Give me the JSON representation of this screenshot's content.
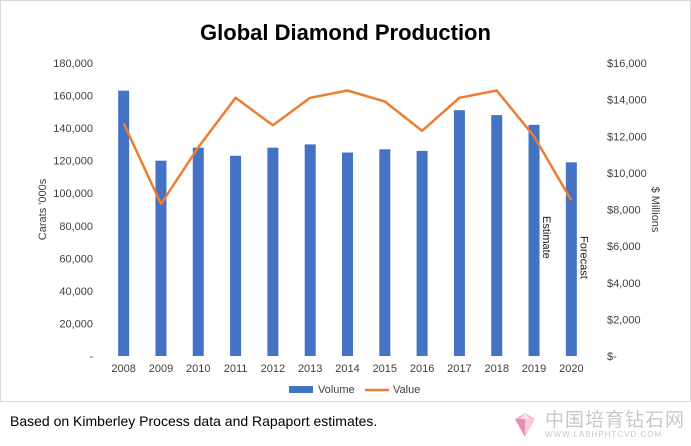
{
  "chart_data": {
    "type": "bar",
    "title": "Global Diamond Production",
    "categories": [
      "2008",
      "2009",
      "2010",
      "2011",
      "2012",
      "2013",
      "2014",
      "2015",
      "2016",
      "2017",
      "2018",
      "2019",
      "2020"
    ],
    "series": [
      {
        "name": "Volume",
        "type": "bar",
        "axis": "left",
        "color": "#4472c4",
        "values": [
          163000,
          120000,
          128000,
          123000,
          128000,
          130000,
          125000,
          127000,
          126000,
          151000,
          148000,
          142000,
          119000
        ]
      },
      {
        "name": "Value",
        "type": "line",
        "axis": "right",
        "color": "#ed7d31",
        "values": [
          12700,
          8300,
          11400,
          14100,
          12600,
          14100,
          14500,
          13900,
          12300,
          14100,
          14500,
          12000,
          8500
        ]
      }
    ],
    "ylabel": "Carats '000s",
    "y2label": "$ Millions",
    "ylim": [
      0,
      180000
    ],
    "y2lim": [
      0,
      16000
    ],
    "yticks": [
      "-",
      "20,000",
      "40,000",
      "60,000",
      "80,000",
      "100,000",
      "120,000",
      "140,000",
      "160,000",
      "180,000"
    ],
    "y2ticks": [
      "$-",
      "$2,000",
      "$4,000",
      "$6,000",
      "$8,000",
      "$10,000",
      "$12,000",
      "$14,000",
      "$16,000"
    ],
    "annotations": [
      {
        "category": "2019",
        "text": "Estimate"
      },
      {
        "category": "2020",
        "text": "Forecast"
      }
    ],
    "legend": {
      "position": "bottom"
    },
    "grid": false
  },
  "caption": "Based on Kimberley Process data and Rapaport estimates.",
  "watermark": {
    "chinese": "中国培育钻石网",
    "url": "WWW.LABHPHTCVD.COM"
  }
}
